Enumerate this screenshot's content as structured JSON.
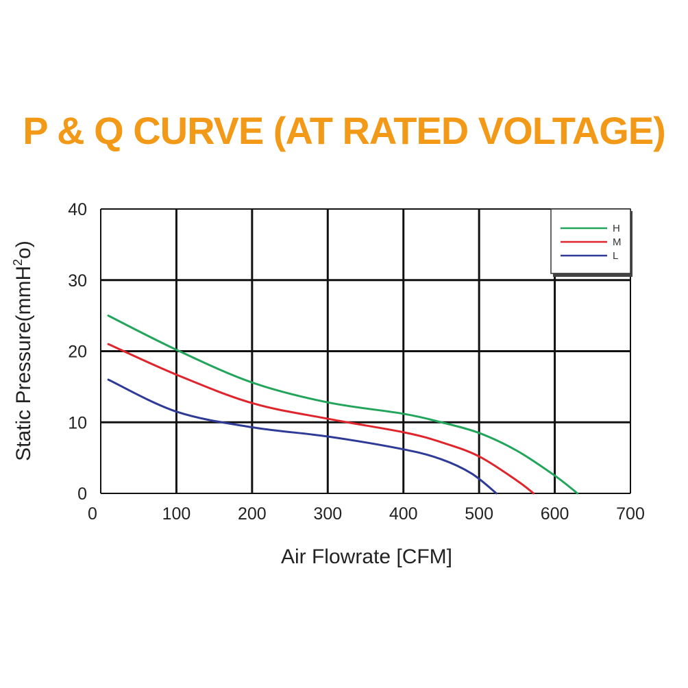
{
  "colors": {
    "title": "#F29A17",
    "grid": "#111111",
    "H": "#22A55B",
    "M": "#E0242B",
    "L": "#2E3A96"
  },
  "chart_data": {
    "type": "line",
    "title": "P & Q CURVE (AT RATED VOLTAGE)",
    "xlabel": "Air  Flowrate   [CFM]",
    "ylabel_main": "Static Pressure(mmH",
    "ylabel_sup": "2",
    "ylabel_end": "o)",
    "xlim": [
      0,
      700
    ],
    "ylim": [
      0,
      40
    ],
    "xticks": [
      "0",
      "100",
      "200",
      "300",
      "400",
      "500",
      "600",
      "700"
    ],
    "yticks": [
      "0",
      "10",
      "20",
      "30",
      "40"
    ],
    "grid": true,
    "legend_position": "top-right",
    "series": [
      {
        "name": "H",
        "x": [
          10,
          100,
          200,
          300,
          400,
          450,
          500,
          550,
          600,
          630
        ],
        "y": [
          25,
          20.2,
          15.6,
          12.8,
          11.2,
          10,
          8.5,
          6,
          2.5,
          0
        ]
      },
      {
        "name": "M",
        "x": [
          10,
          100,
          200,
          300,
          400,
          450,
          500,
          550,
          572
        ],
        "y": [
          21,
          16.7,
          12.7,
          10.5,
          8.6,
          7.2,
          5.2,
          1.8,
          0
        ]
      },
      {
        "name": "L",
        "x": [
          10,
          100,
          200,
          300,
          400,
          450,
          490,
          523
        ],
        "y": [
          16,
          11.5,
          9.3,
          8,
          6.2,
          4.8,
          2.8,
          0
        ]
      }
    ]
  }
}
